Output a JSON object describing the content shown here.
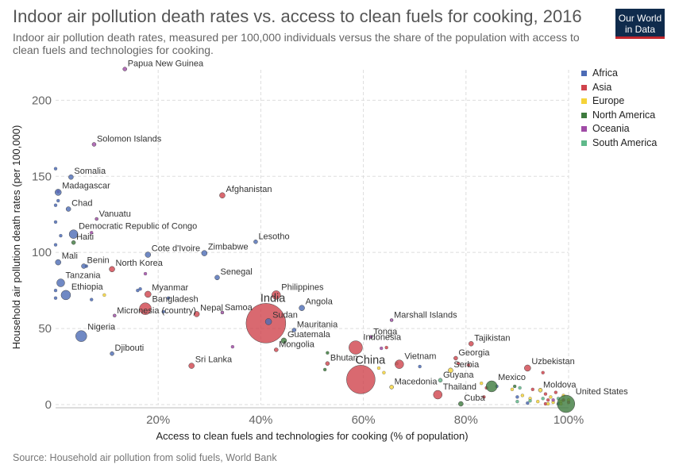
{
  "header": {
    "title": "Indoor air pollution death rates vs. access to clean fuels for cooking, 2016",
    "subtitle": "Indoor air pollution death rates, measured per 100,000 individuals versus the share of the population with access to clean fuels and technologies for cooking.",
    "logo_line1": "Our World",
    "logo_line2": "in Data"
  },
  "legend": [
    {
      "label": "Africa",
      "color": "#4c6bb5"
    },
    {
      "label": "Asia",
      "color": "#d0434c"
    },
    {
      "label": "Europe",
      "color": "#f5d338"
    },
    {
      "label": "North America",
      "color": "#3d7a3d"
    },
    {
      "label": "Oceania",
      "color": "#a04ba6"
    },
    {
      "label": "South America",
      "color": "#5fb98a"
    }
  ],
  "source": "Source: Household air pollution from solid fuels, World Bank",
  "chart_data": {
    "type": "scatter",
    "xlabel": "Access to clean fuels and technologies for cooking (% of population)",
    "ylabel": "Household air pollution death rates (per 100,000)",
    "xlim": [
      0,
      100
    ],
    "ylim": [
      0,
      220
    ],
    "x_ticks": [
      20,
      40,
      60,
      80,
      100
    ],
    "x_tick_labels": [
      "20%",
      "40%",
      "60%",
      "80%",
      "100%"
    ],
    "y_ticks": [
      0,
      50,
      100,
      150,
      200
    ],
    "y_tick_labels": [
      "0",
      "50",
      "100",
      "150",
      "200"
    ],
    "grid": true,
    "legend_position": "right",
    "size_encodes": "population",
    "points": [
      {
        "label": "Papua New Guinea",
        "region": "Oceania",
        "x": 13.5,
        "y": 220.5,
        "r": 2.5
      },
      {
        "label": "Solomon Islands",
        "region": "Oceania",
        "x": 7.5,
        "y": 171,
        "r": 2.5
      },
      {
        "label": "Somalia",
        "region": "Africa",
        "x": 3,
        "y": 149.5,
        "r": 3
      },
      {
        "label": "Madagascar",
        "region": "Africa",
        "x": 0.5,
        "y": 139.5,
        "r": 4
      },
      {
        "label": "Chad",
        "region": "Africa",
        "x": 2.5,
        "y": 128.5,
        "r": 3
      },
      {
        "label": "Vanuatu",
        "region": "Oceania",
        "x": 8,
        "y": 122,
        "r": 2
      },
      {
        "label": "Democratic Republic of Congo",
        "region": "Africa",
        "x": 3.5,
        "y": 112,
        "r": 5.5
      },
      {
        "label": "Haiti",
        "region": "North America",
        "x": 3.5,
        "y": 106.5,
        "r": 2.5
      },
      {
        "label": "Afghanistan",
        "region": "Asia",
        "x": 32.5,
        "y": 137.5,
        "r": 3.5
      },
      {
        "label": "Lesotho",
        "region": "Africa",
        "x": 39,
        "y": 107,
        "r": 2.5
      },
      {
        "label": "Mali",
        "region": "Africa",
        "x": 0.5,
        "y": 93.5,
        "r": 3.5
      },
      {
        "label": "Benin",
        "region": "Africa",
        "x": 5.5,
        "y": 91,
        "r": 3
      },
      {
        "label": "North Korea",
        "region": "Asia",
        "x": 11,
        "y": 89,
        "r": 3.5
      },
      {
        "label": "Cote d'Ivoire",
        "region": "Africa",
        "x": 18,
        "y": 98.5,
        "r": 3.5
      },
      {
        "label": "Zimbabwe",
        "region": "Africa",
        "x": 29,
        "y": 99.5,
        "r": 3.5
      },
      {
        "label": "Tanzania",
        "region": "Africa",
        "x": 1,
        "y": 80,
        "r": 5
      },
      {
        "label": "Ethiopia",
        "region": "Africa",
        "x": 2,
        "y": 72,
        "r": 6
      },
      {
        "label": "Senegal",
        "region": "Africa",
        "x": 31.5,
        "y": 83.5,
        "r": 3
      },
      {
        "label": "Myanmar",
        "region": "Asia",
        "x": 18,
        "y": 72.5,
        "r": 4
      },
      {
        "label": "Philippines",
        "region": "Asia",
        "x": 43,
        "y": 72,
        "r": 5.5
      },
      {
        "label": "Bangladesh",
        "region": "Asia",
        "x": 17.5,
        "y": 63,
        "r": 7.5
      },
      {
        "label": "Angola",
        "region": "Africa",
        "x": 48,
        "y": 63.5,
        "r": 3.5
      },
      {
        "label": "Nepal",
        "region": "Asia",
        "x": 27.5,
        "y": 59.5,
        "r": 3.5
      },
      {
        "label": "Samoa",
        "region": "Oceania",
        "x": 32.5,
        "y": 60.5,
        "r": 2
      },
      {
        "label": "Micronesia (country)",
        "region": "Oceania",
        "x": 11.5,
        "y": 58.5,
        "r": 2
      },
      {
        "label": "India",
        "region": "Asia",
        "x": 41,
        "y": 53.5,
        "r": 25
      },
      {
        "label": "Sudan",
        "region": "Africa",
        "x": 41.5,
        "y": 54.5,
        "r": 4
      },
      {
        "label": "Marshall Islands",
        "region": "Oceania",
        "x": 65.5,
        "y": 55.5,
        "r": 2
      },
      {
        "label": "Mauritania",
        "region": "Africa",
        "x": 46.5,
        "y": 49,
        "r": 2.5
      },
      {
        "label": "Nigeria",
        "region": "Africa",
        "x": 5,
        "y": 45,
        "r": 7
      },
      {
        "label": "Tonga",
        "region": "Oceania",
        "x": 61.5,
        "y": 44.5,
        "r": 2
      },
      {
        "label": "Guatemala",
        "region": "North America",
        "x": 44.5,
        "y": 42,
        "r": 3.5
      },
      {
        "label": "Indonesia",
        "region": "Asia",
        "x": 58.5,
        "y": 37.5,
        "r": 8.5
      },
      {
        "label": "Mongolia",
        "region": "Asia",
        "x": 43,
        "y": 36,
        "r": 2.5
      },
      {
        "label": "Tajikistan",
        "region": "Asia",
        "x": 81,
        "y": 40,
        "r": 3
      },
      {
        "label": "Djibouti",
        "region": "Africa",
        "x": 11,
        "y": 33.5,
        "r": 2.5
      },
      {
        "label": "Georgia",
        "region": "Asia",
        "x": 78,
        "y": 30.5,
        "r": 2.5
      },
      {
        "label": "Vietnam",
        "region": "Asia",
        "x": 67,
        "y": 26.5,
        "r": 5.5
      },
      {
        "label": "Bhutan",
        "region": "Asia",
        "x": 53,
        "y": 27,
        "r": 2.5
      },
      {
        "label": "China",
        "region": "Asia",
        "x": 59.5,
        "y": 16.5,
        "r": 18
      },
      {
        "label": "Sri Lanka",
        "region": "Asia",
        "x": 26.5,
        "y": 25.5,
        "r": 3.5
      },
      {
        "label": "Serbia",
        "region": "Europe",
        "x": 77,
        "y": 22.5,
        "r": 3
      },
      {
        "label": "Uzbekistan",
        "region": "Asia",
        "x": 92,
        "y": 24,
        "r": 4
      },
      {
        "label": "Guyana",
        "region": "South America",
        "x": 75,
        "y": 16,
        "r": 2.5
      },
      {
        "label": "Macedonia",
        "region": "Europe",
        "x": 65.5,
        "y": 11.5,
        "r": 2.5
      },
      {
        "label": "Thailand",
        "region": "Asia",
        "x": 74.5,
        "y": 6.5,
        "r": 5.5
      },
      {
        "label": "Mexico",
        "region": "North America",
        "x": 85,
        "y": 12,
        "r": 7
      },
      {
        "label": "Moldova",
        "region": "Europe",
        "x": 94.5,
        "y": 9.5,
        "r": 2.5
      },
      {
        "label": "United States",
        "region": "North America",
        "x": 99.5,
        "y": 0.5,
        "r": 11
      },
      {
        "label": "Cuba",
        "region": "North America",
        "x": 79,
        "y": 0.5,
        "r": 3
      }
    ],
    "unlabeled_points": [
      {
        "region": "Africa",
        "x": 0,
        "y": 155
      },
      {
        "region": "Africa",
        "x": 0.5,
        "y": 134
      },
      {
        "region": "Africa",
        "x": 0,
        "y": 131
      },
      {
        "region": "Africa",
        "x": 0,
        "y": 120
      },
      {
        "region": "Africa",
        "x": 1,
        "y": 111
      },
      {
        "region": "Africa",
        "x": 0,
        "y": 105
      },
      {
        "region": "Oceania",
        "x": 7,
        "y": 113
      },
      {
        "region": "Oceania",
        "x": 0.5,
        "y": 140
      },
      {
        "region": "Africa",
        "x": 0,
        "y": 75
      },
      {
        "region": "Africa",
        "x": 0,
        "y": 70
      },
      {
        "region": "Africa",
        "x": 6,
        "y": 91
      },
      {
        "region": "Africa",
        "x": 7,
        "y": 69
      },
      {
        "region": "Africa",
        "x": 16,
        "y": 75
      },
      {
        "region": "Africa",
        "x": 16.5,
        "y": 76
      },
      {
        "region": "Africa",
        "x": 21,
        "y": 61
      },
      {
        "region": "Oceania",
        "x": 17.5,
        "y": 86
      },
      {
        "region": "Africa",
        "x": 22,
        "y": 70
      },
      {
        "region": "Europe",
        "x": 9.5,
        "y": 72
      },
      {
        "region": "Oceania",
        "x": 34.5,
        "y": 38
      },
      {
        "region": "North America",
        "x": 53,
        "y": 34
      },
      {
        "region": "North America",
        "x": 52.5,
        "y": 23
      },
      {
        "region": "Oceania",
        "x": 63.5,
        "y": 37
      },
      {
        "region": "Asia",
        "x": 64.5,
        "y": 37.5
      },
      {
        "region": "Europe",
        "x": 64,
        "y": 21
      },
      {
        "region": "Europe",
        "x": 63,
        "y": 24
      },
      {
        "region": "South America",
        "x": 66.5,
        "y": 27
      },
      {
        "region": "Africa",
        "x": 71,
        "y": 25
      },
      {
        "region": "Asia",
        "x": 78.5,
        "y": 27
      },
      {
        "region": "Asia",
        "x": 80.5,
        "y": 26
      },
      {
        "region": "Asia",
        "x": 95,
        "y": 21
      },
      {
        "region": "Europe",
        "x": 83,
        "y": 14
      },
      {
        "region": "Asia",
        "x": 84,
        "y": 11
      },
      {
        "region": "Africa",
        "x": 86,
        "y": 12
      },
      {
        "region": "North America",
        "x": 89.5,
        "y": 12
      },
      {
        "region": "Europe",
        "x": 89,
        "y": 10
      },
      {
        "region": "South America",
        "x": 90.5,
        "y": 11
      },
      {
        "region": "Asia",
        "x": 93,
        "y": 10
      },
      {
        "region": "Europe",
        "x": 91,
        "y": 6
      },
      {
        "region": "Africa",
        "x": 90,
        "y": 5
      },
      {
        "region": "Europe",
        "x": 92.5,
        "y": 4
      },
      {
        "region": "Asia",
        "x": 95.5,
        "y": 7
      },
      {
        "region": "South America",
        "x": 95,
        "y": 4
      },
      {
        "region": "Africa",
        "x": 92,
        "y": 1
      },
      {
        "region": "Europe",
        "x": 94,
        "y": 2
      },
      {
        "region": "Asia",
        "x": 96,
        "y": 3
      },
      {
        "region": "Europe",
        "x": 97,
        "y": 1.5
      },
      {
        "region": "Europe",
        "x": 96.5,
        "y": 5
      },
      {
        "region": "South America",
        "x": 98,
        "y": 4
      },
      {
        "region": "Asia",
        "x": 97.5,
        "y": 8
      },
      {
        "region": "Europe",
        "x": 98.5,
        "y": 2
      },
      {
        "region": "Oceania",
        "x": 97,
        "y": 3
      },
      {
        "region": "Europe",
        "x": 99,
        "y": 6
      },
      {
        "region": "Asia",
        "x": 99,
        "y": 3
      },
      {
        "region": "Africa",
        "x": 98,
        "y": 0.5
      },
      {
        "region": "Europe",
        "x": 98.5,
        "y": 0.5
      },
      {
        "region": "Asia",
        "x": 95.5,
        "y": 0.5
      },
      {
        "region": "South America",
        "x": 92.5,
        "y": 2.5
      },
      {
        "region": "Europe",
        "x": 100,
        "y": 3
      },
      {
        "region": "Asia",
        "x": 100,
        "y": 1.5
      },
      {
        "region": "Europe",
        "x": 96,
        "y": 0.5
      },
      {
        "region": "South America",
        "x": 90,
        "y": 2
      },
      {
        "region": "Asia",
        "x": 83.5,
        "y": 5
      }
    ]
  }
}
